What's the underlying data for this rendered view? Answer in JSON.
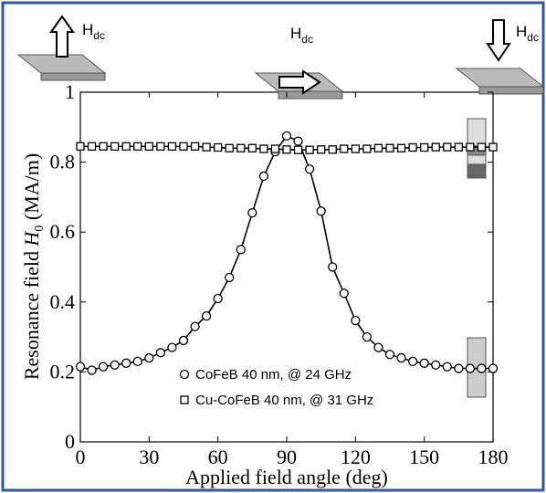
{
  "chart_data": {
    "type": "scatter",
    "xlabel": "Applied field angle (deg)",
    "ylabel_parts": [
      "Resonance field",
      "H",
      "0",
      "(MA/m)"
    ],
    "annotations": [
      {
        "text": "H",
        "sub": "dc"
      },
      {
        "text": "H",
        "sub": "dc"
      },
      {
        "text": "H",
        "sub": "dc"
      }
    ],
    "xlim": [
      0,
      180
    ],
    "ylim": [
      0,
      1
    ],
    "xticks": [
      0,
      30,
      60,
      90,
      120,
      150,
      180
    ],
    "yticks": [
      0,
      0.2,
      0.4,
      0.6,
      0.8,
      1
    ],
    "x": [
      0,
      5,
      10,
      15,
      20,
      25,
      30,
      35,
      40,
      45,
      50,
      55,
      60,
      65,
      70,
      75,
      80,
      85,
      90,
      95,
      100,
      105,
      110,
      115,
      120,
      125,
      130,
      135,
      140,
      145,
      150,
      155,
      160,
      165,
      170,
      175,
      180
    ],
    "series": [
      {
        "name": "CoFeB 40 nm, @ 24 GHz",
        "marker": "circle",
        "color": "#000000",
        "values": [
          0.215,
          0.205,
          0.215,
          0.22,
          0.225,
          0.23,
          0.24,
          0.255,
          0.27,
          0.29,
          0.33,
          0.36,
          0.41,
          0.47,
          0.55,
          0.655,
          0.76,
          0.83,
          0.875,
          0.86,
          0.78,
          0.66,
          0.5,
          0.425,
          0.347,
          0.3,
          0.27,
          0.25,
          0.24,
          0.23,
          0.225,
          0.22,
          0.215,
          0.21,
          0.21,
          0.21,
          0.21
        ]
      },
      {
        "name": "Cu-CoFeB 40 nm, @ 31 GHz",
        "marker": "square",
        "color": "#000000",
        "values": [
          0.845,
          0.845,
          0.845,
          0.845,
          0.845,
          0.845,
          0.845,
          0.845,
          0.845,
          0.845,
          0.845,
          0.843,
          0.842,
          0.84,
          0.84,
          0.84,
          0.838,
          0.838,
          0.836,
          0.835,
          0.835,
          0.836,
          0.836,
          0.838,
          0.838,
          0.838,
          0.84,
          0.84,
          0.84,
          0.842,
          0.842,
          0.843,
          0.843,
          0.843,
          0.843,
          0.843,
          0.843
        ]
      }
    ]
  }
}
